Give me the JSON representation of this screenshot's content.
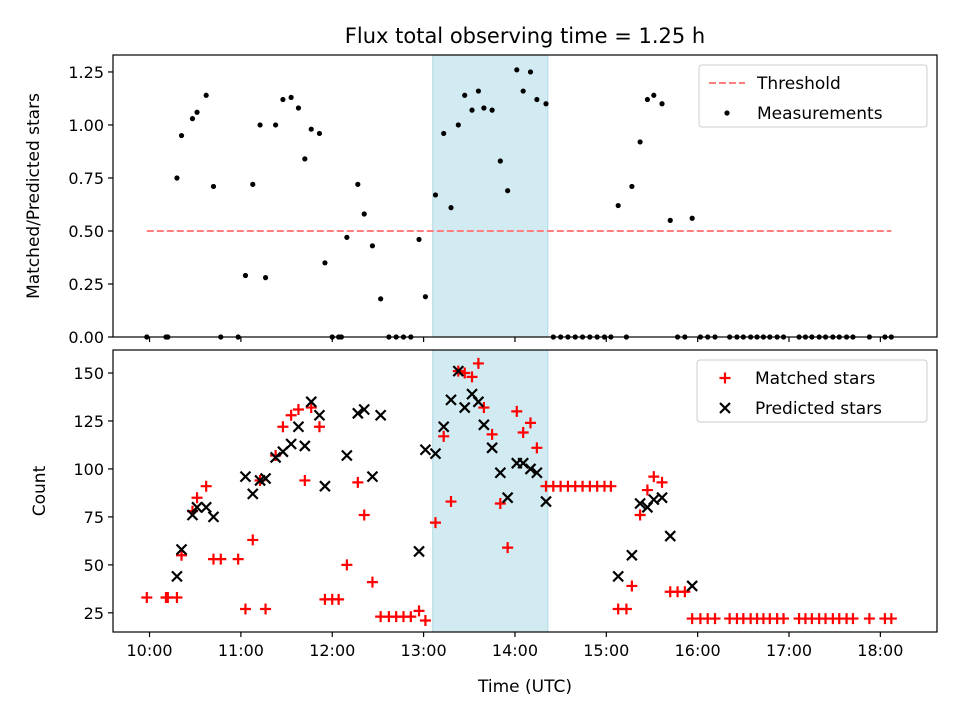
{
  "title": "Flux total observing time = 1.25 h",
  "colors": {
    "threshold": "#ff7f7f",
    "measure": "#000000",
    "matched": "#ff0000",
    "predicted": "#000000",
    "shade": "#add8e6"
  },
  "x_axis": {
    "label": "Time (UTC)",
    "range_hours": [
      9.6,
      18.62
    ],
    "ticks": [
      10,
      11,
      12,
      13,
      14,
      15,
      16,
      17,
      18
    ],
    "tick_labels": [
      "10:00",
      "11:00",
      "12:00",
      "13:00",
      "14:00",
      "15:00",
      "16:00",
      "17:00",
      "18:00"
    ]
  },
  "chart_data": [
    {
      "type": "scatter",
      "title": "Flux total observing time = 1.25 h",
      "ylabel": "Matched/Predicted stars",
      "ylim": [
        0,
        1.33
      ],
      "yticks": [
        0,
        0.25,
        0.5,
        0.75,
        1.0,
        1.25
      ],
      "ytick_labels": [
        "0.00",
        "0.25",
        "0.50",
        "0.75",
        "1.00",
        "1.25"
      ],
      "shaded_span_hours": [
        13.1,
        14.36
      ],
      "threshold": {
        "name": "Threshold",
        "y": 0.5,
        "x_range_hours": [
          9.97,
          18.12
        ]
      },
      "legend_entries": [
        "Threshold",
        "Measurements"
      ],
      "legend_position": "upper right",
      "series": [
        {
          "name": "Measurements",
          "points": [
            [
              9.97,
              0
            ],
            [
              10.18,
              0
            ],
            [
              10.2,
              0
            ],
            [
              10.3,
              0.75
            ],
            [
              10.35,
              0.95
            ],
            [
              10.47,
              1.03
            ],
            [
              10.52,
              1.06
            ],
            [
              10.62,
              1.14
            ],
            [
              10.7,
              0.71
            ],
            [
              10.78,
              0
            ],
            [
              10.97,
              0
            ],
            [
              11.05,
              0.29
            ],
            [
              11.13,
              0.72
            ],
            [
              11.21,
              1.0
            ],
            [
              11.27,
              0.28
            ],
            [
              11.38,
              1.0
            ],
            [
              11.46,
              1.12
            ],
            [
              11.55,
              1.13
            ],
            [
              11.63,
              1.08
            ],
            [
              11.7,
              0.84
            ],
            [
              11.77,
              0.98
            ],
            [
              11.86,
              0.96
            ],
            [
              11.92,
              0.35
            ],
            [
              12.0,
              0
            ],
            [
              12.07,
              0
            ],
            [
              12.1,
              0
            ],
            [
              12.16,
              0.47
            ],
            [
              12.28,
              0.72
            ],
            [
              12.35,
              0.58
            ],
            [
              12.44,
              0.43
            ],
            [
              12.53,
              0.18
            ],
            [
              12.62,
              0
            ],
            [
              12.7,
              0
            ],
            [
              12.78,
              0
            ],
            [
              12.86,
              0
            ],
            [
              12.95,
              0.46
            ],
            [
              13.02,
              0.19
            ],
            [
              13.13,
              0.67
            ],
            [
              13.22,
              0.96
            ],
            [
              13.3,
              0.61
            ],
            [
              13.38,
              1.0
            ],
            [
              13.45,
              1.14
            ],
            [
              13.53,
              1.07
            ],
            [
              13.6,
              1.16
            ],
            [
              13.66,
              1.08
            ],
            [
              13.75,
              1.07
            ],
            [
              13.84,
              0.83
            ],
            [
              13.92,
              0.69
            ],
            [
              14.02,
              1.26
            ],
            [
              14.09,
              1.16
            ],
            [
              14.17,
              1.25
            ],
            [
              14.24,
              1.12
            ],
            [
              14.34,
              1.1
            ],
            [
              14.42,
              0
            ],
            [
              14.5,
              0
            ],
            [
              14.58,
              0
            ],
            [
              14.66,
              0
            ],
            [
              14.74,
              0
            ],
            [
              14.82,
              0
            ],
            [
              14.9,
              0
            ],
            [
              14.98,
              0
            ],
            [
              15.05,
              0
            ],
            [
              15.13,
              0.62
            ],
            [
              15.22,
              0
            ],
            [
              15.28,
              0.71
            ],
            [
              15.37,
              0.92
            ],
            [
              15.45,
              1.12
            ],
            [
              15.52,
              1.14
            ],
            [
              15.61,
              1.1
            ],
            [
              15.7,
              0.55
            ],
            [
              15.78,
              0
            ],
            [
              15.86,
              0
            ],
            [
              15.94,
              0.56
            ],
            [
              16.03,
              0
            ],
            [
              16.11,
              0
            ],
            [
              16.19,
              0
            ],
            [
              16.35,
              0
            ],
            [
              16.43,
              0
            ],
            [
              16.5,
              0
            ],
            [
              16.58,
              0
            ],
            [
              16.65,
              0
            ],
            [
              16.72,
              0
            ],
            [
              16.79,
              0
            ],
            [
              16.87,
              0
            ],
            [
              16.94,
              0
            ],
            [
              17.11,
              0
            ],
            [
              17.18,
              0
            ],
            [
              17.25,
              0
            ],
            [
              17.33,
              0
            ],
            [
              17.4,
              0
            ],
            [
              17.48,
              0
            ],
            [
              17.55,
              0
            ],
            [
              17.63,
              0
            ],
            [
              17.7,
              0
            ],
            [
              17.88,
              0
            ],
            [
              18.05,
              0
            ],
            [
              18.12,
              0
            ]
          ]
        }
      ]
    },
    {
      "type": "scatter",
      "xlabel": "Time (UTC)",
      "ylabel": "Count",
      "ylim": [
        15,
        162
      ],
      "yticks": [
        25,
        50,
        75,
        100,
        125,
        150
      ],
      "ytick_labels": [
        "25",
        "50",
        "75",
        "100",
        "125",
        "150"
      ],
      "shaded_span_hours": [
        13.1,
        14.36
      ],
      "legend_entries": [
        "Matched stars",
        "Predicted stars"
      ],
      "legend_position": "upper right",
      "series": [
        {
          "name": "Matched stars",
          "marker": "+",
          "points": [
            [
              9.97,
              33
            ],
            [
              10.18,
              33
            ],
            [
              10.2,
              33
            ],
            [
              10.3,
              33
            ],
            [
              10.35,
              55
            ],
            [
              10.47,
              78
            ],
            [
              10.52,
              85
            ],
            [
              10.62,
              91
            ],
            [
              10.7,
              53
            ],
            [
              10.78,
              53
            ],
            [
              10.97,
              53
            ],
            [
              11.05,
              27
            ],
            [
              11.13,
              63
            ],
            [
              11.21,
              94
            ],
            [
              11.27,
              27
            ],
            [
              11.38,
              107
            ],
            [
              11.46,
              122
            ],
            [
              11.55,
              128
            ],
            [
              11.63,
              131
            ],
            [
              11.7,
              94
            ],
            [
              11.77,
              132
            ],
            [
              11.86,
              122
            ],
            [
              11.92,
              32
            ],
            [
              12.0,
              32
            ],
            [
              12.07,
              32
            ],
            [
              12.16,
              50
            ],
            [
              12.28,
              93
            ],
            [
              12.35,
              76
            ],
            [
              12.44,
              41
            ],
            [
              12.53,
              23
            ],
            [
              12.62,
              23
            ],
            [
              12.7,
              23
            ],
            [
              12.78,
              23
            ],
            [
              12.86,
              23
            ],
            [
              12.95,
              26
            ],
            [
              13.02,
              21
            ],
            [
              13.13,
              72
            ],
            [
              13.22,
              117
            ],
            [
              13.3,
              83
            ],
            [
              13.38,
              151
            ],
            [
              13.45,
              150
            ],
            [
              13.53,
              148
            ],
            [
              13.6,
              155
            ],
            [
              13.66,
              132
            ],
            [
              13.75,
              118
            ],
            [
              13.84,
              82
            ],
            [
              13.92,
              59
            ],
            [
              14.02,
              130
            ],
            [
              14.09,
              119
            ],
            [
              14.17,
              124
            ],
            [
              14.24,
              111
            ],
            [
              14.34,
              91
            ],
            [
              14.42,
              91
            ],
            [
              14.5,
              91
            ],
            [
              14.58,
              91
            ],
            [
              14.66,
              91
            ],
            [
              14.74,
              91
            ],
            [
              14.82,
              91
            ],
            [
              14.9,
              91
            ],
            [
              14.98,
              91
            ],
            [
              15.05,
              91
            ],
            [
              15.13,
              27
            ],
            [
              15.22,
              27
            ],
            [
              15.28,
              39
            ],
            [
              15.37,
              76
            ],
            [
              15.45,
              89
            ],
            [
              15.52,
              96
            ],
            [
              15.61,
              93
            ],
            [
              15.7,
              36
            ],
            [
              15.78,
              36
            ],
            [
              15.86,
              36
            ],
            [
              15.94,
              22
            ],
            [
              16.03,
              22
            ],
            [
              16.11,
              22
            ],
            [
              16.19,
              22
            ],
            [
              16.35,
              22
            ],
            [
              16.43,
              22
            ],
            [
              16.5,
              22
            ],
            [
              16.58,
              22
            ],
            [
              16.65,
              22
            ],
            [
              16.72,
              22
            ],
            [
              16.79,
              22
            ],
            [
              16.87,
              22
            ],
            [
              16.94,
              22
            ],
            [
              17.11,
              22
            ],
            [
              17.18,
              22
            ],
            [
              17.25,
              22
            ],
            [
              17.33,
              22
            ],
            [
              17.4,
              22
            ],
            [
              17.48,
              22
            ],
            [
              17.55,
              22
            ],
            [
              17.63,
              22
            ],
            [
              17.7,
              22
            ],
            [
              17.88,
              22
            ],
            [
              18.05,
              22
            ],
            [
              18.12,
              22
            ]
          ]
        },
        {
          "name": "Predicted stars",
          "marker": "x",
          "points": [
            [
              10.3,
              44
            ],
            [
              10.35,
              58
            ],
            [
              10.47,
              76
            ],
            [
              10.52,
              80
            ],
            [
              10.62,
              80
            ],
            [
              10.7,
              75
            ],
            [
              11.05,
              96
            ],
            [
              11.13,
              87
            ],
            [
              11.21,
              94
            ],
            [
              11.27,
              95
            ],
            [
              11.38,
              106
            ],
            [
              11.46,
              109
            ],
            [
              11.55,
              113
            ],
            [
              11.63,
              122
            ],
            [
              11.7,
              112
            ],
            [
              11.77,
              135
            ],
            [
              11.86,
              128
            ],
            [
              11.92,
              91
            ],
            [
              12.16,
              107
            ],
            [
              12.28,
              129
            ],
            [
              12.35,
              131
            ],
            [
              12.44,
              96
            ],
            [
              12.53,
              128
            ],
            [
              12.95,
              57
            ],
            [
              13.02,
              110
            ],
            [
              13.13,
              108
            ],
            [
              13.22,
              122
            ],
            [
              13.3,
              136
            ],
            [
              13.38,
              151
            ],
            [
              13.45,
              132
            ],
            [
              13.53,
              139
            ],
            [
              13.6,
              135
            ],
            [
              13.66,
              123
            ],
            [
              13.75,
              111
            ],
            [
              13.84,
              98
            ],
            [
              13.92,
              85
            ],
            [
              14.02,
              103
            ],
            [
              14.09,
              103
            ],
            [
              14.17,
              100
            ],
            [
              14.24,
              98
            ],
            [
              14.34,
              83
            ],
            [
              15.13,
              44
            ],
            [
              15.28,
              55
            ],
            [
              15.37,
              82
            ],
            [
              15.45,
              80
            ],
            [
              15.52,
              84
            ],
            [
              15.61,
              85
            ],
            [
              15.7,
              65
            ],
            [
              15.94,
              39
            ]
          ]
        }
      ]
    }
  ]
}
